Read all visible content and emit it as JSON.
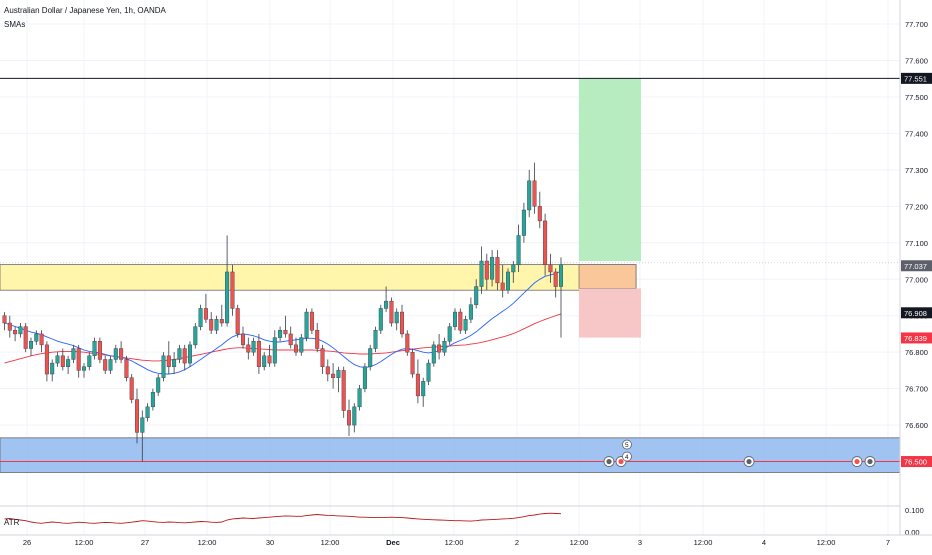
{
  "header": {
    "title": "Australian Dollar / Japanese Yen, 1h, OANDA",
    "indicator": "SMAs"
  },
  "atr": {
    "label": "ATR",
    "ticks": [
      "0.00",
      "0.100"
    ]
  },
  "colors": {
    "up": "#26a69a",
    "down": "#ef5350",
    "sma_fast": "#2962ff",
    "sma_slow": "#f23645",
    "zone_resistance": "#fff59d",
    "zone_support": "#90b8ee",
    "target_zone": "#b7ebc0",
    "stop_zone": "#f7c6c6",
    "entry_zone": "#f9c79a"
  },
  "badges": [
    {
      "text": "77.551",
      "price": 77.551,
      "bg": "#131722",
      "fg": "#ffffff"
    },
    {
      "text": "77.037",
      "price": 77.037,
      "bg": "#5d606b",
      "fg": "#ffffff"
    },
    {
      "text": "76.908",
      "price": 76.908,
      "bg": "#131722",
      "fg": "#ffffff"
    },
    {
      "text": "76.839",
      "price": 76.839,
      "bg": "#f23645",
      "fg": "#ffffff"
    },
    {
      "text": "76.500",
      "price": 76.5,
      "bg": "#f23645",
      "fg": "#ffffff"
    }
  ],
  "event_markers": [
    {
      "text": "5"
    },
    {
      "text": "4"
    }
  ],
  "chart_data": {
    "type": "candlestick",
    "x_ticks": [
      "26",
      "12:00",
      "27",
      "12:00",
      "30",
      "12:00",
      "Dec",
      "12:00",
      "2",
      "12:00",
      "3",
      "12:00",
      "4",
      "12:00",
      "7"
    ],
    "y_ticks": [
      "77.700",
      "77.600",
      "77.500",
      "77.400",
      "77.300",
      "77.200",
      "77.100",
      "77.000",
      "76.900",
      "76.800",
      "76.700",
      "76.600",
      "76.500"
    ],
    "ylim": [
      76.4,
      77.77
    ],
    "horizontal_lines": [
      77.551,
      76.5
    ],
    "zones": {
      "resistance": [
        76.97,
        77.04
      ],
      "support": [
        76.47,
        76.565
      ],
      "trade_target": [
        77.05,
        77.551
      ],
      "trade_entry": [
        76.975,
        77.04
      ],
      "trade_stop": [
        76.84,
        76.975
      ]
    },
    "ohlc": [
      [
        76.9,
        76.91,
        76.86,
        76.88
      ],
      [
        76.88,
        76.9,
        76.84,
        76.86
      ],
      [
        76.86,
        76.87,
        76.83,
        76.85
      ],
      [
        76.85,
        76.88,
        76.84,
        76.87
      ],
      [
        76.87,
        76.88,
        76.8,
        76.81
      ],
      [
        76.81,
        76.84,
        76.79,
        76.83
      ],
      [
        76.83,
        76.86,
        76.82,
        76.85
      ],
      [
        76.85,
        76.86,
        76.8,
        76.82
      ],
      [
        76.82,
        76.83,
        76.72,
        76.74
      ],
      [
        76.74,
        76.78,
        76.72,
        76.77
      ],
      [
        76.77,
        76.8,
        76.76,
        76.79
      ],
      [
        76.79,
        76.81,
        76.75,
        76.76
      ],
      [
        76.76,
        76.79,
        76.74,
        76.78
      ],
      [
        76.78,
        76.82,
        76.77,
        76.81
      ],
      [
        76.81,
        76.82,
        76.73,
        76.75
      ],
      [
        76.75,
        76.77,
        76.73,
        76.76
      ],
      [
        76.76,
        76.8,
        76.75,
        76.79
      ],
      [
        76.79,
        76.84,
        76.78,
        76.83
      ],
      [
        76.83,
        76.84,
        76.77,
        76.78
      ],
      [
        76.78,
        76.79,
        76.74,
        76.75
      ],
      [
        76.75,
        76.79,
        76.74,
        76.78
      ],
      [
        76.78,
        76.82,
        76.77,
        76.81
      ],
      [
        76.81,
        76.83,
        76.77,
        76.78
      ],
      [
        76.78,
        76.79,
        76.72,
        76.73
      ],
      [
        76.73,
        76.74,
        76.66,
        76.67
      ],
      [
        76.67,
        76.7,
        76.55,
        76.58
      ],
      [
        76.58,
        76.64,
        76.5,
        76.62
      ],
      [
        76.62,
        76.66,
        76.61,
        76.65
      ],
      [
        76.65,
        76.7,
        76.64,
        76.69
      ],
      [
        76.69,
        76.74,
        76.68,
        76.73
      ],
      [
        76.73,
        76.8,
        76.72,
        76.79
      ],
      [
        76.79,
        76.83,
        76.74,
        76.76
      ],
      [
        76.76,
        76.8,
        76.74,
        76.78
      ],
      [
        76.78,
        76.82,
        76.77,
        76.81
      ],
      [
        76.81,
        76.82,
        76.75,
        76.77
      ],
      [
        76.77,
        76.83,
        76.76,
        76.82
      ],
      [
        76.82,
        76.88,
        76.81,
        76.87
      ],
      [
        76.87,
        76.93,
        76.86,
        76.92
      ],
      [
        76.92,
        76.96,
        76.88,
        76.89
      ],
      [
        76.89,
        76.91,
        76.85,
        76.86
      ],
      [
        76.86,
        76.9,
        76.85,
        76.89
      ],
      [
        76.89,
        76.93,
        76.87,
        76.88
      ],
      [
        76.88,
        77.12,
        76.87,
        77.02
      ],
      [
        77.02,
        77.04,
        76.9,
        76.92
      ],
      [
        76.92,
        76.93,
        76.84,
        76.85
      ],
      [
        76.85,
        76.87,
        76.81,
        76.82
      ],
      [
        76.82,
        76.84,
        76.78,
        76.8
      ],
      [
        76.8,
        76.84,
        76.79,
        76.83
      ],
      [
        76.83,
        76.85,
        76.74,
        76.76
      ],
      [
        76.76,
        76.8,
        76.75,
        76.79
      ],
      [
        76.79,
        76.82,
        76.76,
        76.77
      ],
      [
        76.77,
        76.86,
        76.76,
        76.84
      ],
      [
        76.84,
        76.87,
        76.83,
        76.86
      ],
      [
        76.86,
        76.9,
        76.84,
        76.85
      ],
      [
        76.85,
        76.87,
        76.81,
        76.82
      ],
      [
        76.82,
        76.84,
        76.79,
        76.8
      ],
      [
        76.8,
        76.85,
        76.79,
        76.84
      ],
      [
        76.84,
        76.92,
        76.83,
        76.91
      ],
      [
        76.91,
        76.92,
        76.85,
        76.86
      ],
      [
        76.86,
        76.88,
        76.8,
        76.81
      ],
      [
        76.81,
        76.82,
        76.74,
        76.76
      ],
      [
        76.76,
        76.78,
        76.72,
        76.74
      ],
      [
        76.74,
        76.77,
        76.7,
        76.73
      ],
      [
        76.73,
        76.76,
        76.69,
        76.75
      ],
      [
        76.75,
        76.76,
        76.62,
        76.64
      ],
      [
        76.64,
        76.67,
        76.57,
        76.6
      ],
      [
        76.6,
        76.66,
        76.58,
        76.65
      ],
      [
        76.65,
        76.71,
        76.64,
        76.7
      ],
      [
        76.7,
        76.77,
        76.69,
        76.76
      ],
      [
        76.76,
        76.82,
        76.75,
        76.81
      ],
      [
        76.81,
        76.87,
        76.8,
        76.86
      ],
      [
        76.86,
        76.93,
        76.85,
        76.92
      ],
      [
        76.92,
        76.98,
        76.91,
        76.94
      ],
      [
        76.94,
        76.95,
        76.87,
        76.88
      ],
      [
        76.88,
        76.92,
        76.86,
        76.91
      ],
      [
        76.91,
        76.93,
        76.84,
        76.85
      ],
      [
        76.85,
        76.86,
        76.79,
        76.8
      ],
      [
        76.8,
        76.81,
        76.73,
        76.74
      ],
      [
        76.74,
        76.78,
        76.66,
        76.68
      ],
      [
        76.68,
        76.73,
        76.65,
        76.72
      ],
      [
        76.72,
        76.78,
        76.71,
        76.77
      ],
      [
        76.77,
        76.83,
        76.76,
        76.82
      ],
      [
        76.82,
        76.85,
        76.78,
        76.8
      ],
      [
        76.8,
        76.84,
        76.79,
        76.83
      ],
      [
        76.83,
        76.88,
        76.82,
        76.87
      ],
      [
        76.87,
        76.92,
        76.86,
        76.91
      ],
      [
        76.91,
        76.92,
        76.85,
        76.86
      ],
      [
        76.86,
        76.9,
        76.85,
        76.89
      ],
      [
        76.89,
        76.95,
        76.88,
        76.93
      ],
      [
        76.93,
        77.0,
        76.92,
        76.98
      ],
      [
        76.98,
        77.09,
        76.96,
        77.05
      ],
      [
        77.05,
        77.07,
        76.97,
        77.0
      ],
      [
        77.0,
        77.08,
        76.98,
        77.06
      ],
      [
        77.06,
        77.08,
        76.97,
        76.99
      ],
      [
        76.99,
        77.04,
        76.95,
        76.97
      ],
      [
        76.97,
        77.03,
        76.96,
        77.02
      ],
      [
        77.02,
        77.05,
        76.99,
        77.04
      ],
      [
        77.04,
        77.15,
        77.02,
        77.12
      ],
      [
        77.12,
        77.21,
        77.1,
        77.19
      ],
      [
        77.19,
        77.3,
        77.17,
        77.27
      ],
      [
        77.27,
        77.32,
        77.18,
        77.2
      ],
      [
        77.2,
        77.24,
        77.14,
        77.16
      ],
      [
        77.16,
        77.18,
        77.01,
        77.04
      ],
      [
        77.04,
        77.07,
        76.99,
        77.02
      ],
      [
        77.02,
        77.03,
        76.95,
        76.98
      ],
      [
        76.98,
        77.06,
        76.84,
        77.04
      ]
    ],
    "sma_fast": [
      76.88,
      76.876,
      76.87,
      76.866,
      76.86,
      76.855,
      76.852,
      76.848,
      76.842,
      76.836,
      76.83,
      76.826,
      76.822,
      76.818,
      76.812,
      76.806,
      76.802,
      76.8,
      76.798,
      76.794,
      76.79,
      76.788,
      76.786,
      76.782,
      76.776,
      76.768,
      76.76,
      76.752,
      76.746,
      76.742,
      76.74,
      76.74,
      76.742,
      76.746,
      76.752,
      76.76,
      76.77,
      76.78,
      76.79,
      76.8,
      76.81,
      76.82,
      76.832,
      76.842,
      76.848,
      76.85,
      76.848,
      76.845,
      76.84,
      76.834,
      76.83,
      76.828,
      76.828,
      76.83,
      76.832,
      76.834,
      76.836,
      76.838,
      76.838,
      76.836,
      76.83,
      76.822,
      76.812,
      76.8,
      76.788,
      76.776,
      76.766,
      76.76,
      76.758,
      76.76,
      76.766,
      76.774,
      76.784,
      76.794,
      76.802,
      76.808,
      76.81,
      76.808,
      76.804,
      76.8,
      76.798,
      76.8,
      76.804,
      76.81,
      76.818,
      76.826,
      76.832,
      76.838,
      76.846,
      76.856,
      76.868,
      76.88,
      76.892,
      76.902,
      76.912,
      76.922,
      76.934,
      76.948,
      76.962,
      76.976,
      76.99,
      77.0,
      77.008,
      77.012,
      77.016,
      77.022
    ],
    "sma_slow": [
      76.77,
      76.774,
      76.778,
      76.782,
      76.786,
      76.79,
      76.793,
      76.796,
      76.798,
      76.8,
      76.801,
      76.802,
      76.802,
      76.802,
      76.801,
      76.8,
      76.798,
      76.796,
      76.794,
      76.792,
      76.79,
      76.788,
      76.786,
      76.784,
      76.782,
      76.78,
      76.778,
      76.777,
      76.776,
      76.776,
      76.777,
      76.778,
      76.78,
      76.782,
      76.785,
      76.788,
      76.791,
      76.794,
      76.797,
      76.8,
      76.803,
      76.806,
      76.809,
      76.811,
      76.812,
      76.812,
      76.811,
      76.81,
      76.809,
      76.808,
      76.807,
      76.806,
      76.806,
      76.806,
      76.806,
      76.806,
      76.806,
      76.806,
      76.806,
      76.805,
      76.804,
      76.803,
      76.802,
      76.8,
      76.798,
      76.797,
      76.796,
      76.795,
      76.795,
      76.795,
      76.796,
      76.797,
      76.798,
      76.8,
      76.802,
      76.804,
      76.806,
      76.808,
      76.81,
      76.812,
      76.813,
      76.814,
      76.815,
      76.816,
      76.817,
      76.818,
      76.819,
      76.82,
      76.822,
      76.824,
      76.827,
      76.83,
      76.834,
      76.838,
      76.842,
      76.846,
      76.851,
      76.857,
      76.864,
      76.871,
      76.878,
      76.884,
      76.89,
      76.895,
      76.9,
      76.905
    ],
    "atr_values": [
      0.06,
      0.062,
      0.058,
      0.055,
      0.052,
      0.046,
      0.042,
      0.04,
      0.043,
      0.046,
      0.044,
      0.041,
      0.04,
      0.042,
      0.045,
      0.043,
      0.041,
      0.04,
      0.042,
      0.044,
      0.043,
      0.041,
      0.04,
      0.042,
      0.045,
      0.048,
      0.052,
      0.05,
      0.047,
      0.045,
      0.044,
      0.046,
      0.045,
      0.043,
      0.042,
      0.044,
      0.046,
      0.048,
      0.047,
      0.045,
      0.044,
      0.046,
      0.055,
      0.06,
      0.062,
      0.064,
      0.063,
      0.062,
      0.064,
      0.066,
      0.068,
      0.07,
      0.072,
      0.074,
      0.073,
      0.072,
      0.072,
      0.075,
      0.078,
      0.08,
      0.078,
      0.076,
      0.075,
      0.074,
      0.073,
      0.072,
      0.07,
      0.068,
      0.068,
      0.067,
      0.066,
      0.066,
      0.067,
      0.068,
      0.067,
      0.066,
      0.064,
      0.062,
      0.06,
      0.058,
      0.057,
      0.056,
      0.055,
      0.054,
      0.053,
      0.052,
      0.052,
      0.051,
      0.05,
      0.052,
      0.055,
      0.056,
      0.057,
      0.058,
      0.06,
      0.061,
      0.063,
      0.066,
      0.07,
      0.075,
      0.078,
      0.082,
      0.085,
      0.086,
      0.085,
      0.084
    ]
  }
}
